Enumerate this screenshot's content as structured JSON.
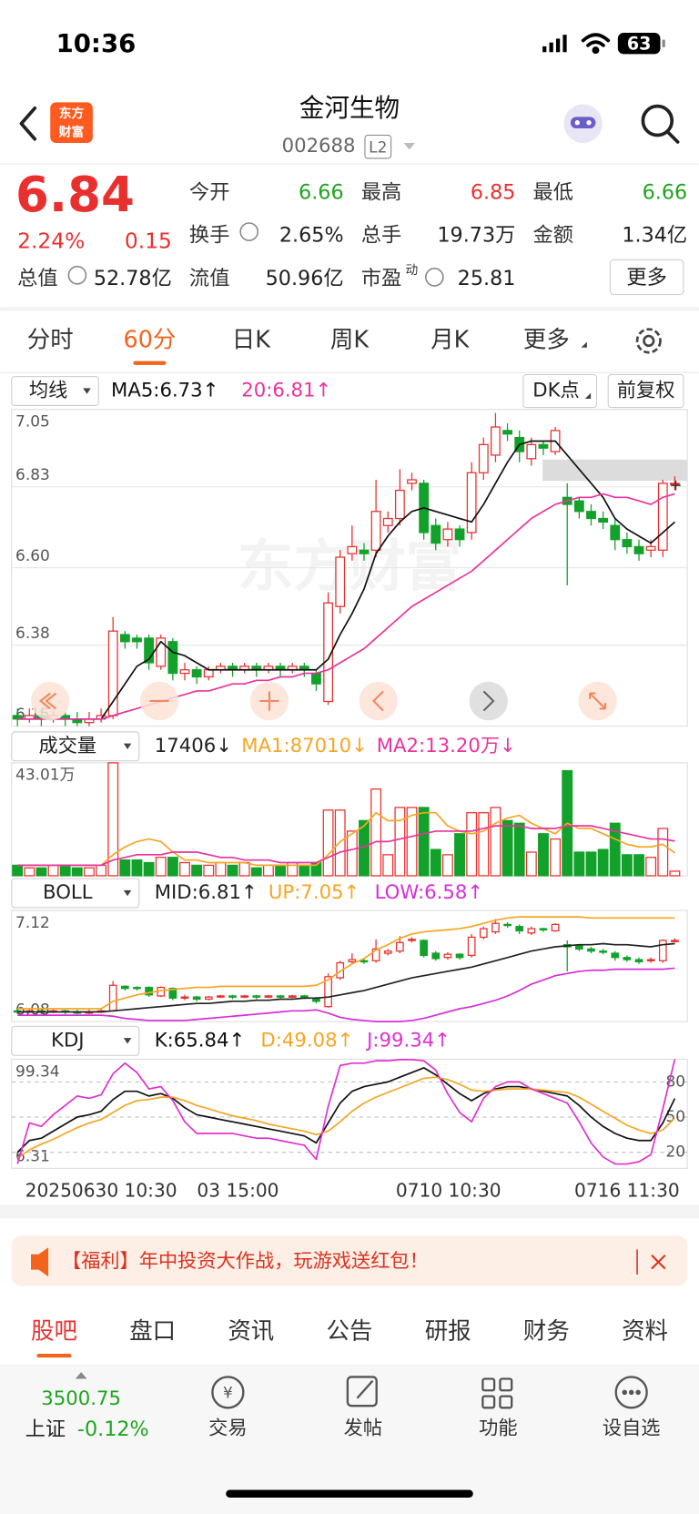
{
  "status": {
    "time": "10:36",
    "battery": "63"
  },
  "header": {
    "logo": [
      "东方",
      "财富"
    ],
    "title": "金河生物",
    "code": "002688",
    "badge": "L2"
  },
  "quote": {
    "price": "6.84",
    "change_pct": "2.24%",
    "change": "0.15",
    "more": "更多",
    "fields": [
      {
        "label": "今开",
        "value": "6.66",
        "color": "#1ea51e"
      },
      {
        "label": "最高",
        "value": "6.85",
        "color": "#e8312f"
      },
      {
        "label": "最低",
        "value": "6.66",
        "color": "#1ea51e"
      },
      {
        "label": "换手",
        "value": "2.65%",
        "color": "#222222"
      },
      {
        "label": "总手",
        "value": "19.73万",
        "color": "#222222"
      },
      {
        "label": "金额",
        "value": "1.34亿",
        "color": "#222222"
      },
      {
        "label": "总值",
        "value": "52.78亿",
        "color": "#222222"
      },
      {
        "label": "流值",
        "value": "50.96亿",
        "color": "#222222"
      },
      {
        "label": "市盈",
        "sup": "动",
        "value": "25.81",
        "color": "#222222"
      }
    ]
  },
  "tabs": {
    "items": [
      "分时",
      "60分",
      "日K",
      "周K",
      "月K",
      "更多"
    ],
    "active": 1
  },
  "watermark": "东方财富",
  "chart_data": [
    {
      "type": "candlestick",
      "indicator": "均线",
      "buttons": [
        "DK点",
        "前复权"
      ],
      "ylim": [
        6.15,
        7.05
      ],
      "yticks": [
        7.05,
        6.83,
        {
          "value": 6.6,
          "label": "6.60"
        },
        6.38,
        6.15
      ],
      "grid": true,
      "up_color": "#e8312f",
      "down_color": "#12a12a",
      "open": [
        6.18,
        6.17,
        6.18,
        6.17,
        6.18,
        6.17,
        6.16,
        6.17,
        6.18,
        6.41,
        6.4,
        6.4,
        6.32,
        6.39,
        6.3,
        6.31,
        6.29,
        6.31,
        6.32,
        6.31,
        6.32,
        6.31,
        6.32,
        6.31,
        6.32,
        6.3,
        6.22,
        6.49,
        6.64,
        6.65,
        6.65,
        6.72,
        6.74,
        6.84,
        6.84,
        6.72,
        6.68,
        6.71,
        6.7,
        6.87,
        6.92,
        6.99,
        6.97,
        6.91,
        6.95,
        6.93,
        6.8,
        6.79,
        6.76,
        6.74,
        6.72,
        6.68,
        6.66,
        6.65,
        6.65,
        6.84
      ],
      "high": [
        6.2,
        6.2,
        6.2,
        6.2,
        6.19,
        6.19,
        6.19,
        6.2,
        6.46,
        6.42,
        6.41,
        6.41,
        6.41,
        6.4,
        6.33,
        6.32,
        6.32,
        6.33,
        6.33,
        6.33,
        6.33,
        6.33,
        6.33,
        6.33,
        6.33,
        6.31,
        6.53,
        6.65,
        6.72,
        6.67,
        6.85,
        6.76,
        6.88,
        6.87,
        6.85,
        6.74,
        6.73,
        6.72,
        6.9,
        6.97,
        7.04,
        7.01,
        6.99,
        6.97,
        6.96,
        7.0,
        6.84,
        6.8,
        6.78,
        6.76,
        6.74,
        6.7,
        6.68,
        6.68,
        6.85,
        6.86
      ],
      "low": [
        6.15,
        6.16,
        6.15,
        6.16,
        6.15,
        6.15,
        6.15,
        6.16,
        6.17,
        6.37,
        6.37,
        6.31,
        6.31,
        6.28,
        6.28,
        6.27,
        6.28,
        6.3,
        6.29,
        6.3,
        6.29,
        6.3,
        6.29,
        6.3,
        6.29,
        6.25,
        6.21,
        6.47,
        6.62,
        6.62,
        6.63,
        6.7,
        6.72,
        6.82,
        6.68,
        6.65,
        6.66,
        6.66,
        6.68,
        6.85,
        6.9,
        6.96,
        6.9,
        6.89,
        6.92,
        6.92,
        6.55,
        6.74,
        6.72,
        6.71,
        6.65,
        6.64,
        6.62,
        6.63,
        6.63,
        6.82
      ],
      "close": [
        6.17,
        6.18,
        6.17,
        6.18,
        6.17,
        6.16,
        6.17,
        6.18,
        6.42,
        6.39,
        6.39,
        6.33,
        6.4,
        6.3,
        6.31,
        6.29,
        6.31,
        6.32,
        6.31,
        6.32,
        6.31,
        6.32,
        6.31,
        6.32,
        6.31,
        6.27,
        6.5,
        6.63,
        6.66,
        6.64,
        6.76,
        6.74,
        6.82,
        6.85,
        6.7,
        6.67,
        6.71,
        6.68,
        6.87,
        6.95,
        7.0,
        6.98,
        6.93,
        6.95,
        6.94,
        6.99,
        6.78,
        6.76,
        6.74,
        6.73,
        6.68,
        6.66,
        6.64,
        6.66,
        6.84,
        6.84
      ],
      "series": [
        {
          "name": "MA5:6.73↑",
          "color": "#111111",
          "values": [
            6.17,
            6.17,
            6.17,
            6.17,
            6.17,
            6.17,
            6.17,
            6.17,
            6.22,
            6.27,
            6.32,
            6.34,
            6.39,
            6.36,
            6.35,
            6.33,
            6.31,
            6.31,
            6.31,
            6.31,
            6.31,
            6.31,
            6.31,
            6.31,
            6.31,
            6.31,
            6.34,
            6.41,
            6.47,
            6.54,
            6.64,
            6.69,
            6.73,
            6.76,
            6.77,
            6.76,
            6.75,
            6.74,
            6.73,
            6.78,
            6.84,
            6.9,
            6.95,
            6.96,
            6.96,
            6.96,
            6.92,
            6.88,
            6.84,
            6.8,
            6.74,
            6.71,
            6.69,
            6.67,
            6.7,
            6.73
          ]
        },
        {
          "name": "20:6.81↑",
          "color": "#e8339e",
          "values": [
            6.17,
            6.17,
            6.17,
            6.17,
            6.17,
            6.17,
            6.17,
            6.17,
            6.18,
            6.19,
            6.2,
            6.21,
            6.22,
            6.23,
            6.24,
            6.25,
            6.25,
            6.26,
            6.27,
            6.27,
            6.28,
            6.28,
            6.29,
            6.29,
            6.3,
            6.3,
            6.31,
            6.33,
            6.35,
            6.37,
            6.4,
            6.43,
            6.46,
            6.49,
            6.51,
            6.53,
            6.55,
            6.57,
            6.59,
            6.62,
            6.65,
            6.68,
            6.71,
            6.74,
            6.76,
            6.78,
            6.79,
            6.8,
            6.8,
            6.81,
            6.8,
            6.8,
            6.79,
            6.78,
            6.8,
            6.81
          ]
        }
      ]
    },
    {
      "type": "bar",
      "indicator": "成交量",
      "last": "17406↓",
      "ylim": [
        0,
        43.01
      ],
      "yticks": [
        {
          "value": 43.01,
          "label": "43.01万"
        }
      ],
      "values": [
        4,
        3,
        3,
        4,
        4,
        3,
        3,
        4,
        43,
        6,
        6,
        5,
        7,
        7,
        5,
        4,
        4,
        5,
        4,
        5,
        3,
        4,
        4,
        5,
        4,
        5,
        25,
        25,
        17,
        21,
        33,
        8,
        26,
        26,
        26,
        10,
        8,
        16,
        24,
        24,
        26,
        21,
        20,
        9,
        16,
        14,
        40,
        9,
        9,
        10,
        20,
        8,
        8,
        7,
        18,
        1.74
      ],
      "series": [
        {
          "name": "MA1:87010↓",
          "color": "#f5a623",
          "values": [
            4,
            4,
            4,
            4,
            4,
            4,
            4,
            4,
            8,
            11,
            13,
            14,
            13,
            9,
            6,
            6,
            5,
            5,
            5,
            5,
            4,
            4,
            4,
            4,
            4,
            4,
            8,
            13,
            16,
            19,
            24,
            21,
            21,
            23,
            24,
            24,
            19,
            17,
            16,
            17,
            20,
            22,
            23,
            20,
            18,
            16,
            20,
            18,
            18,
            16,
            14,
            12,
            11,
            11,
            12,
            8.7
          ]
        },
        {
          "name": "MA2:13.20万↓",
          "color": "#e8339e",
          "values": [
            4,
            4,
            4,
            4,
            4,
            4,
            4,
            4,
            6,
            7,
            8,
            8,
            8,
            9,
            9,
            9,
            8,
            7,
            7,
            6,
            6,
            6,
            5,
            5,
            5,
            5,
            7,
            9,
            10,
            11,
            13,
            13,
            14,
            15,
            16,
            17,
            17,
            17,
            17,
            18,
            19,
            19,
            19,
            18,
            18,
            18,
            19,
            19,
            19,
            18,
            17,
            16,
            15,
            14,
            14,
            13.2
          ]
        }
      ]
    },
    {
      "type": "boll",
      "indicator": "BOLL",
      "ylim": [
        6.08,
        7.12
      ],
      "yticks": [
        7.12,
        6.08
      ],
      "series": [
        {
          "name": "MID:6.81↑",
          "color": "#222222",
          "values": [
            6.17,
            6.17,
            6.17,
            6.17,
            6.17,
            6.17,
            6.17,
            6.17,
            6.18,
            6.19,
            6.2,
            6.21,
            6.22,
            6.23,
            6.24,
            6.25,
            6.25,
            6.26,
            6.27,
            6.27,
            6.28,
            6.28,
            6.29,
            6.29,
            6.3,
            6.3,
            6.31,
            6.33,
            6.35,
            6.37,
            6.4,
            6.43,
            6.46,
            6.49,
            6.51,
            6.53,
            6.55,
            6.57,
            6.59,
            6.62,
            6.65,
            6.68,
            6.71,
            6.74,
            6.76,
            6.78,
            6.79,
            6.8,
            6.8,
            6.81,
            6.8,
            6.8,
            6.79,
            6.78,
            6.8,
            6.81
          ]
        },
        {
          "name": "UP:7.05↑",
          "color": "#f5a623",
          "values": [
            6.2,
            6.2,
            6.2,
            6.2,
            6.2,
            6.2,
            6.2,
            6.2,
            6.27,
            6.3,
            6.33,
            6.35,
            6.37,
            6.38,
            6.39,
            6.4,
            6.4,
            6.41,
            6.41,
            6.41,
            6.41,
            6.41,
            6.41,
            6.41,
            6.41,
            6.42,
            6.47,
            6.55,
            6.62,
            6.67,
            6.75,
            6.8,
            6.86,
            6.9,
            6.92,
            6.93,
            6.94,
            6.95,
            6.97,
            7.0,
            7.03,
            7.05,
            7.06,
            7.06,
            7.06,
            7.06,
            7.06,
            7.06,
            7.05,
            7.05,
            7.05,
            7.05,
            7.05,
            7.05,
            7.05,
            7.05
          ]
        },
        {
          "name": "LOW:6.58↑",
          "color": "#d62fd6",
          "values": [
            6.14,
            6.14,
            6.14,
            6.14,
            6.14,
            6.14,
            6.14,
            6.14,
            6.13,
            6.11,
            6.1,
            6.09,
            6.09,
            6.09,
            6.09,
            6.1,
            6.11,
            6.12,
            6.13,
            6.14,
            6.15,
            6.16,
            6.17,
            6.18,
            6.18,
            6.19,
            6.16,
            6.12,
            6.1,
            6.09,
            6.08,
            6.08,
            6.08,
            6.09,
            6.11,
            6.14,
            6.17,
            6.2,
            6.22,
            6.25,
            6.28,
            6.32,
            6.37,
            6.43,
            6.47,
            6.51,
            6.53,
            6.55,
            6.56,
            6.56,
            6.57,
            6.57,
            6.57,
            6.57,
            6.57,
            6.58
          ]
        }
      ]
    },
    {
      "type": "line",
      "indicator": "KDJ",
      "ylim": [
        6.31,
        99.34
      ],
      "yticks": [
        99.34,
        6.31
      ],
      "y2lim": [
        6.31,
        99.34
      ],
      "y2ticks": [
        80,
        50,
        20
      ],
      "series": [
        {
          "name": "K:65.84↑",
          "color": "#111111",
          "values": [
            20,
            30,
            32,
            38,
            44,
            50,
            52,
            55,
            65,
            72,
            72,
            68,
            70,
            66,
            58,
            52,
            50,
            48,
            46,
            44,
            42,
            40,
            38,
            36,
            34,
            28,
            45,
            62,
            72,
            76,
            78,
            80,
            84,
            88,
            92,
            86,
            78,
            70,
            64,
            70,
            74,
            76,
            76,
            74,
            72,
            70,
            68,
            60,
            50,
            42,
            36,
            32,
            30,
            30,
            45,
            65.84
          ]
        },
        {
          "name": "D:49.08↑",
          "color": "#f5a623",
          "values": [
            15,
            22,
            27,
            31,
            36,
            41,
            45,
            48,
            54,
            60,
            64,
            65,
            67,
            67,
            64,
            60,
            57,
            54,
            51,
            49,
            47,
            44,
            42,
            40,
            38,
            35,
            38,
            46,
            55,
            62,
            67,
            71,
            75,
            79,
            83,
            84,
            82,
            78,
            73,
            72,
            73,
            74,
            74,
            74,
            73,
            72,
            71,
            67,
            61,
            55,
            49,
            43,
            39,
            36,
            39,
            49.08
          ]
        },
        {
          "name": "J:99.34↑",
          "color": "#e030d0",
          "values": [
            10,
            45,
            42,
            52,
            60,
            68,
            66,
            69,
            87,
            96,
            88,
            74,
            76,
            64,
            46,
            36,
            36,
            36,
            36,
            34,
            32,
            32,
            30,
            28,
            26,
            14,
            59,
            94,
            96,
            96,
            98,
            98,
            99,
            99,
            98,
            90,
            70,
            54,
            46,
            66,
            76,
            80,
            80,
            74,
            70,
            66,
            62,
            46,
            28,
            16,
            10,
            10,
            12,
            18,
            57,
            99.34
          ]
        }
      ]
    }
  ],
  "x_labels": [
    "20250630 10:30",
    "03 15:00",
    "0710 10:30",
    "0716 11:30"
  ],
  "banner": {
    "text": "【福利】年中投资大作战，玩游戏送红包！"
  },
  "bottom_tabs": {
    "items": [
      "股吧",
      "盘口",
      "资讯",
      "公告",
      "研报",
      "财务",
      "资料"
    ],
    "active": 0
  },
  "footer": {
    "index_value": "3500.75",
    "index_name": "上证",
    "index_change": "-0.12%",
    "actions": [
      "交易",
      "发帖",
      "功能",
      "设自选"
    ]
  }
}
